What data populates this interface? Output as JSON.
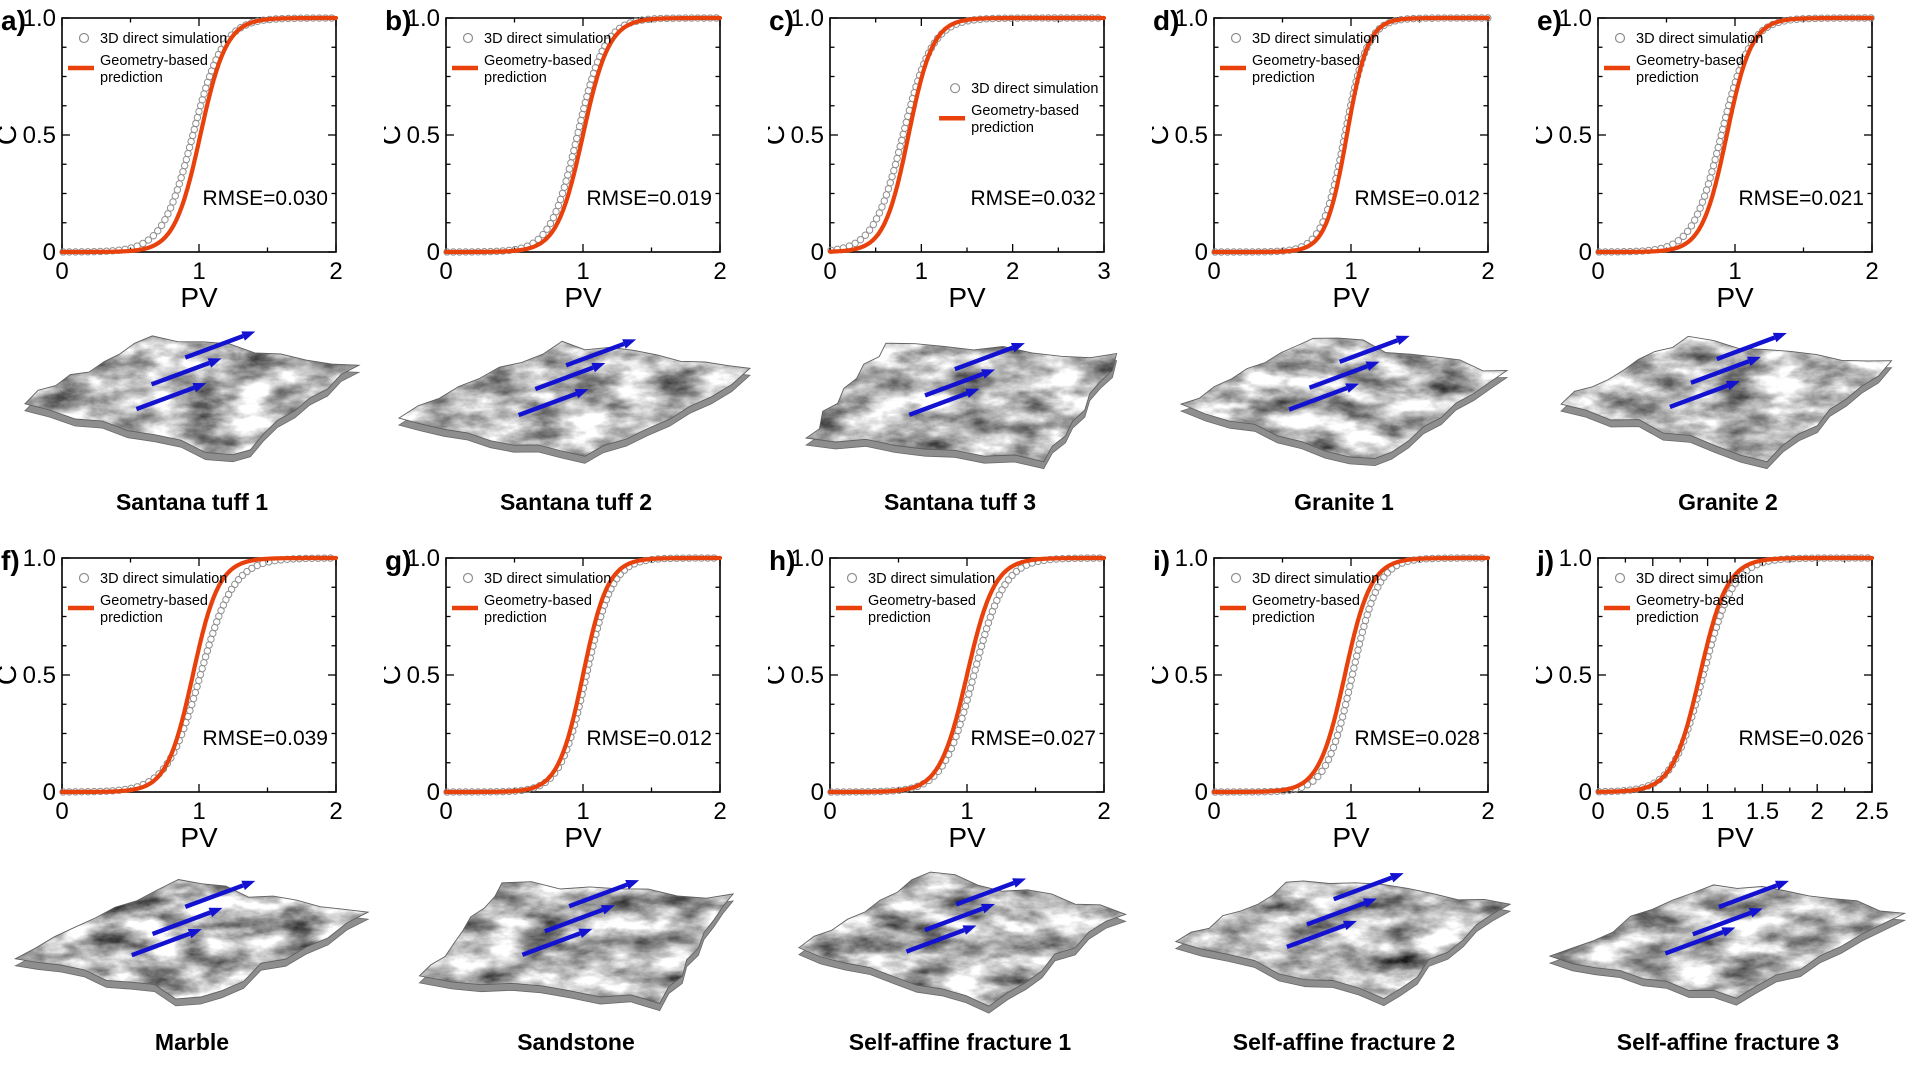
{
  "figure": {
    "colors": {
      "prediction_line": "#e8410c",
      "simulation_marker": "#8f8f8f",
      "flow_arrow": "#1212d0",
      "axis": "#000000",
      "surface_gray": "#b9b9b9"
    },
    "legend": {
      "simulation": "3D direct simulation",
      "prediction_line1": "Geometry-based",
      "prediction_line2": "prediction"
    }
  },
  "chart_data": [
    {
      "type": "line",
      "panel_label": "a)",
      "title": "Santana tuff 1",
      "xlabel": "PV",
      "ylabel": "C",
      "xlim": [
        0,
        2
      ],
      "ylim": [
        0,
        1
      ],
      "x_ticks": [
        0,
        1,
        2
      ],
      "x_tick_labels": [
        "0",
        "1",
        "2"
      ],
      "x_minor_step": 0.5,
      "y_ticks": [
        0,
        0.5,
        1
      ],
      "y_tick_labels": [
        "0",
        "0.5",
        "1.0"
      ],
      "y_minor_step": 0.125,
      "annotation": "RMSE=0.030",
      "legend_position": "top-left",
      "grid": "off",
      "series": [
        {
          "name": "3D direct simulation",
          "style": "open-circle markers",
          "color": "#8f8f8f",
          "logistic": {
            "midpoint": 0.955,
            "steepness": 9.0
          }
        },
        {
          "name": "Geometry-based prediction",
          "style": "solid line",
          "color": "#e8410c",
          "logistic": {
            "midpoint": 1.01,
            "steepness": 10.5
          }
        }
      ]
    },
    {
      "type": "line",
      "panel_label": "b)",
      "title": "Santana tuff 2",
      "xlabel": "PV",
      "ylabel": "C",
      "xlim": [
        0,
        2
      ],
      "ylim": [
        0,
        1
      ],
      "x_ticks": [
        0,
        1,
        2
      ],
      "x_tick_labels": [
        "0",
        "1",
        "2"
      ],
      "x_minor_step": 0.5,
      "y_ticks": [
        0,
        0.5,
        1
      ],
      "y_tick_labels": [
        "0",
        "0.5",
        "1.0"
      ],
      "y_minor_step": 0.125,
      "annotation": "RMSE=0.019",
      "legend_position": "top-left",
      "grid": "off",
      "series": [
        {
          "name": "3D direct simulation",
          "style": "open-circle markers",
          "color": "#8f8f8f",
          "logistic": {
            "midpoint": 0.96,
            "steepness": 10.0
          }
        },
        {
          "name": "Geometry-based prediction",
          "style": "solid line",
          "color": "#e8410c",
          "logistic": {
            "midpoint": 1.0,
            "steepness": 10.5
          }
        }
      ]
    },
    {
      "type": "line",
      "panel_label": "c)",
      "title": "Santana tuff 3",
      "xlabel": "PV",
      "ylabel": "C",
      "xlim": [
        0,
        3
      ],
      "ylim": [
        0,
        1
      ],
      "x_ticks": [
        0,
        1,
        2,
        3
      ],
      "x_tick_labels": [
        "0",
        "1",
        "2",
        "3"
      ],
      "x_minor_step": 0.5,
      "y_ticks": [
        0,
        0.5,
        1
      ],
      "y_tick_labels": [
        "0",
        "0.5",
        "1.0"
      ],
      "y_minor_step": 0.125,
      "annotation": "RMSE=0.032",
      "legend_position": "middle-right",
      "grid": "off",
      "series": [
        {
          "name": "3D direct simulation",
          "style": "open-circle markers",
          "color": "#8f8f8f",
          "logistic": {
            "midpoint": 0.8,
            "steepness": 6.2
          }
        },
        {
          "name": "Geometry-based prediction",
          "style": "solid line",
          "color": "#e8410c",
          "logistic": {
            "midpoint": 0.86,
            "steepness": 7.5
          }
        }
      ]
    },
    {
      "type": "line",
      "panel_label": "d)",
      "title": "Granite 1",
      "xlabel": "PV",
      "ylabel": "C",
      "xlim": [
        0,
        2
      ],
      "ylim": [
        0,
        1
      ],
      "x_ticks": [
        0,
        1,
        2
      ],
      "x_tick_labels": [
        "0",
        "1",
        "2"
      ],
      "x_minor_step": 0.5,
      "y_ticks": [
        0,
        0.5,
        1
      ],
      "y_tick_labels": [
        "0",
        "0.5",
        "1.0"
      ],
      "y_minor_step": 0.125,
      "annotation": "RMSE=0.012",
      "legend_position": "top-left",
      "grid": "off",
      "series": [
        {
          "name": "3D direct simulation",
          "style": "open-circle markers",
          "color": "#8f8f8f",
          "logistic": {
            "midpoint": 0.955,
            "steepness": 12.0
          }
        },
        {
          "name": "Geometry-based prediction",
          "style": "solid line",
          "color": "#e8410c",
          "logistic": {
            "midpoint": 0.97,
            "steepness": 13.0
          }
        }
      ]
    },
    {
      "type": "line",
      "panel_label": "e)",
      "title": "Granite 2",
      "xlabel": "PV",
      "ylabel": "C",
      "xlim": [
        0,
        2
      ],
      "ylim": [
        0,
        1
      ],
      "x_ticks": [
        0,
        1,
        2
      ],
      "x_tick_labels": [
        "0",
        "1",
        "2"
      ],
      "x_minor_step": 0.5,
      "y_ticks": [
        0,
        0.5,
        1
      ],
      "y_tick_labels": [
        "0",
        "0.5",
        "1.0"
      ],
      "y_minor_step": 0.125,
      "annotation": "RMSE=0.021",
      "legend_position": "top-left",
      "grid": "off",
      "series": [
        {
          "name": "3D direct simulation",
          "style": "open-circle markers",
          "color": "#8f8f8f",
          "logistic": {
            "midpoint": 0.9,
            "steepness": 9.5
          }
        },
        {
          "name": "Geometry-based prediction",
          "style": "solid line",
          "color": "#e8410c",
          "logistic": {
            "midpoint": 0.94,
            "steepness": 11.0
          }
        }
      ]
    },
    {
      "type": "line",
      "panel_label": "f)",
      "title": "Marble",
      "xlabel": "PV",
      "ylabel": "C",
      "xlim": [
        0,
        2
      ],
      "ylim": [
        0,
        1
      ],
      "x_ticks": [
        0,
        1,
        2
      ],
      "x_tick_labels": [
        "0",
        "1",
        "2"
      ],
      "x_minor_step": 0.5,
      "y_ticks": [
        0,
        0.5,
        1
      ],
      "y_tick_labels": [
        "0",
        "0.5",
        "1.0"
      ],
      "y_minor_step": 0.125,
      "annotation": "RMSE=0.039",
      "legend_position": "top-left",
      "grid": "off",
      "series": [
        {
          "name": "3D direct simulation",
          "style": "open-circle markers",
          "color": "#8f8f8f",
          "logistic": {
            "midpoint": 1.01,
            "steepness": 8.2
          }
        },
        {
          "name": "Geometry-based prediction",
          "style": "solid line",
          "color": "#e8410c",
          "logistic": {
            "midpoint": 0.955,
            "steepness": 10.5
          }
        }
      ]
    },
    {
      "type": "line",
      "panel_label": "g)",
      "title": "Sandstone",
      "xlabel": "PV",
      "ylabel": "C",
      "xlim": [
        0,
        2
      ],
      "ylim": [
        0,
        1
      ],
      "x_ticks": [
        0,
        1,
        2
      ],
      "x_tick_labels": [
        "0",
        "1",
        "2"
      ],
      "x_minor_step": 0.5,
      "y_ticks": [
        0,
        0.5,
        1
      ],
      "y_tick_labels": [
        "0",
        "0.5",
        "1.0"
      ],
      "y_minor_step": 0.125,
      "annotation": "RMSE=0.012",
      "legend_position": "top-left",
      "grid": "off",
      "series": [
        {
          "name": "3D direct simulation",
          "style": "open-circle markers",
          "color": "#8f8f8f",
          "logistic": {
            "midpoint": 1.025,
            "steepness": 10.5
          }
        },
        {
          "name": "Geometry-based prediction",
          "style": "solid line",
          "color": "#e8410c",
          "logistic": {
            "midpoint": 1.0,
            "steepness": 11.0
          }
        }
      ]
    },
    {
      "type": "line",
      "panel_label": "h)",
      "title": "Self-affine fracture 1",
      "xlabel": "PV",
      "ylabel": "C",
      "xlim": [
        0,
        2
      ],
      "ylim": [
        0,
        1
      ],
      "x_ticks": [
        0,
        1,
        2
      ],
      "x_tick_labels": [
        "0",
        "1",
        "2"
      ],
      "x_minor_step": 0.5,
      "y_ticks": [
        0,
        0.5,
        1
      ],
      "y_tick_labels": [
        "0",
        "0.5",
        "1.0"
      ],
      "y_minor_step": 0.125,
      "annotation": "RMSE=0.027",
      "legend_position": "top-left",
      "grid": "off",
      "series": [
        {
          "name": "3D direct simulation",
          "style": "open-circle markers",
          "color": "#8f8f8f",
          "logistic": {
            "midpoint": 1.05,
            "steepness": 9.0
          }
        },
        {
          "name": "Geometry-based prediction",
          "style": "solid line",
          "color": "#e8410c",
          "logistic": {
            "midpoint": 1.0,
            "steepness": 10.0
          }
        }
      ]
    },
    {
      "type": "line",
      "panel_label": "i)",
      "title": "Self-affine fracture 2",
      "xlabel": "PV",
      "ylabel": "C",
      "xlim": [
        0,
        2
      ],
      "ylim": [
        0,
        1
      ],
      "x_ticks": [
        0,
        1,
        2
      ],
      "x_tick_labels": [
        "0",
        "1",
        "2"
      ],
      "x_minor_step": 0.5,
      "y_ticks": [
        0,
        0.5,
        1
      ],
      "y_tick_labels": [
        "0",
        "0.5",
        "1.0"
      ],
      "y_minor_step": 0.125,
      "annotation": "RMSE=0.028",
      "legend_position": "top-left",
      "grid": "off",
      "series": [
        {
          "name": "3D direct simulation",
          "style": "open-circle markers",
          "color": "#8f8f8f",
          "logistic": {
            "midpoint": 1.01,
            "steepness": 10.5
          }
        },
        {
          "name": "Geometry-based prediction",
          "style": "solid line",
          "color": "#e8410c",
          "logistic": {
            "midpoint": 0.955,
            "steepness": 10.5
          }
        }
      ]
    },
    {
      "type": "line",
      "panel_label": "j)",
      "title": "Self-affine fracture 3",
      "xlabel": "PV",
      "ylabel": "C",
      "xlim": [
        0,
        2.5
      ],
      "ylim": [
        0,
        1
      ],
      "x_ticks": [
        0,
        0.5,
        1,
        1.5,
        2,
        2.5
      ],
      "x_tick_labels": [
        "0",
        "0.5",
        "1",
        "1.5",
        "2",
        "2.5"
      ],
      "x_minor_step": 0.25,
      "y_ticks": [
        0,
        0.5,
        1
      ],
      "y_tick_labels": [
        "0",
        "0.5",
        "1.0"
      ],
      "y_minor_step": 0.125,
      "annotation": "RMSE=0.026",
      "legend_position": "top-left",
      "grid": "off",
      "series": [
        {
          "name": "3D direct simulation",
          "style": "open-circle markers",
          "color": "#8f8f8f",
          "logistic": {
            "midpoint": 0.96,
            "steepness": 7.2
          }
        },
        {
          "name": "Geometry-based prediction",
          "style": "solid line",
          "color": "#e8410c",
          "logistic": {
            "midpoint": 0.93,
            "steepness": 8.0
          }
        }
      ]
    }
  ]
}
